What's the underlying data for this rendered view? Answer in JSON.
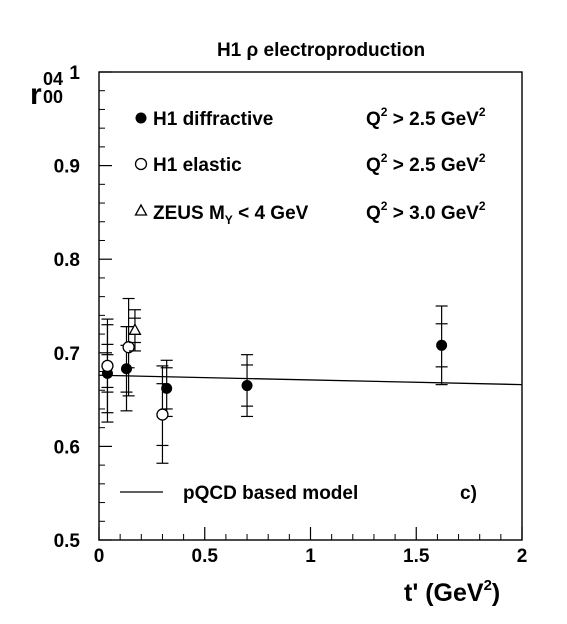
{
  "chart_data": {
    "type": "scatter",
    "title": "H1 ρ electroproduction",
    "xlabel": "t' (GeV",
    "xlabel_sup": "2",
    "xlabel_close": ")",
    "ylabel_base": "r",
    "ylabel_sub": "00",
    "ylabel_sup": "04",
    "xlim": [
      0,
      2
    ],
    "ylim": [
      0.5,
      1
    ],
    "x_ticks": [
      {
        "value": 0,
        "label": "0"
      },
      {
        "value": 0.5,
        "label": "0.5"
      },
      {
        "value": 1,
        "label": "1"
      },
      {
        "value": 1.5,
        "label": "1.5"
      },
      {
        "value": 2,
        "label": "2"
      }
    ],
    "y_ticks": [
      {
        "value": 0.5,
        "label": "0.5"
      },
      {
        "value": 0.6,
        "label": "0.6"
      },
      {
        "value": 0.7,
        "label": "0.7"
      },
      {
        "value": 0.8,
        "label": "0.8"
      },
      {
        "value": 0.9,
        "label": "0.9"
      },
      {
        "value": 1,
        "label": "1"
      }
    ],
    "series": [
      {
        "name": "H1 diffractive",
        "marker": "filled-circle",
        "condition": "Q² > 2.5 GeV²",
        "points": [
          {
            "x": 0.04,
            "y": 0.678,
            "stat": 0.02,
            "tot": 0.052
          },
          {
            "x": 0.13,
            "y": 0.683,
            "stat": 0.025,
            "tot": 0.045
          },
          {
            "x": 0.32,
            "y": 0.662,
            "stat": 0.022,
            "tot": 0.03
          },
          {
            "x": 0.7,
            "y": 0.665,
            "stat": 0.022,
            "tot": 0.033
          },
          {
            "x": 1.62,
            "y": 0.708,
            "stat": 0.023,
            "tot": 0.042
          }
        ]
      },
      {
        "name": "H1 elastic",
        "marker": "open-circle",
        "condition": "Q² > 2.5 GeV²",
        "points": [
          {
            "x": 0.04,
            "y": 0.686,
            "stat": 0.023,
            "tot": 0.05
          },
          {
            "x": 0.14,
            "y": 0.706,
            "stat": 0.022,
            "tot": 0.052
          },
          {
            "x": 0.3,
            "y": 0.634,
            "stat": 0.033,
            "tot": 0.052
          }
        ]
      },
      {
        "name": "ZEUS M",
        "name_sub": "Y",
        "name_suffix": " < 4 GeV",
        "marker": "open-triangle",
        "condition": "Q² > 3.0 GeV²",
        "points": [
          {
            "x": 0.17,
            "y": 0.724,
            "stat": 0.013,
            "tot": 0.022
          }
        ]
      }
    ],
    "conditions": [
      {
        "base": "Q",
        "sup": "2",
        "rest": " > 2.5 GeV",
        "sup2": "2"
      },
      {
        "base": "Q",
        "sup": "2",
        "rest": " > 2.5 GeV",
        "sup2": "2"
      },
      {
        "base": "Q",
        "sup": "2",
        "rest": " > 3.0 GeV",
        "sup2": "2"
      }
    ],
    "model": {
      "name": "pQCD based model",
      "line": [
        {
          "x": 0,
          "y": 0.676
        },
        {
          "x": 2,
          "y": 0.666
        }
      ]
    },
    "panel_label": "c)",
    "colors": {
      "ink": "#000000",
      "background": "#ffffff"
    }
  }
}
